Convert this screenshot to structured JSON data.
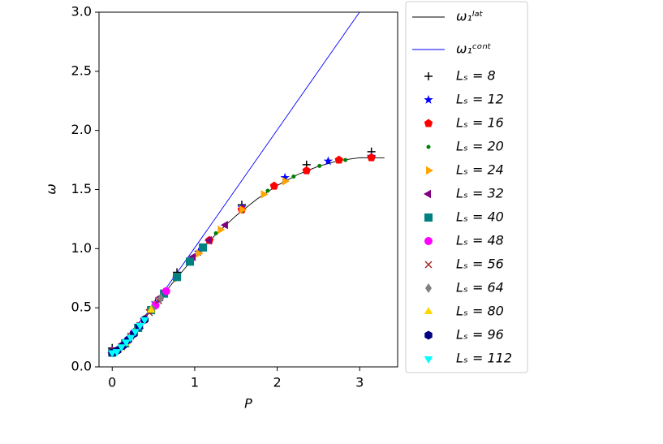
{
  "chart_data": {
    "type": "scatter",
    "x_label": "P",
    "y_label": "ω",
    "xlim": [
      -0.16,
      3.46
    ],
    "ylim": [
      0,
      3
    ],
    "xticks": [
      0,
      1,
      2,
      3
    ],
    "yticks": [
      {
        "value": 0,
        "label": "0.0"
      },
      0.5,
      {
        "value": 1,
        "label": "1.0"
      },
      1.5,
      {
        "value": 2,
        "label": "2.0"
      },
      2.5,
      {
        "value": 3,
        "label": "3.0"
      }
    ],
    "legend": "outside-right",
    "series": [
      {
        "name": "ω₁ˡᵃᵗ",
        "style": "line",
        "color": "#000000",
        "x": [
          0,
          0.25,
          0.5,
          0.75,
          1,
          1.25,
          1.5,
          1.75,
          2,
          2.25,
          2.5,
          2.75,
          3,
          3.3
        ],
        "values": [
          0.12,
          0.276,
          0.504,
          0.726,
          0.931,
          1.116,
          1.278,
          1.417,
          1.534,
          1.627,
          1.697,
          1.745,
          1.769,
          1.767
        ]
      },
      {
        "name": "ω₁ᶜᵒⁿᵗ",
        "style": "line",
        "color": "#0000ff",
        "x": [
          0,
          0.5,
          1,
          1.5,
          2,
          2.5,
          3
        ],
        "values": [
          0.12,
          0.514,
          1.007,
          1.505,
          2.004,
          2.503,
          3.002
        ]
      },
      {
        "name": "Lₛ = 8",
        "style": "plus",
        "color": "#000000",
        "x": [
          0,
          0.785,
          1.571,
          2.356,
          3.142
        ],
        "values": [
          0.16,
          0.8,
          1.37,
          1.71,
          1.82
        ]
      },
      {
        "name": "Lₛ = 12",
        "style": "star",
        "color": "#0000ff",
        "x": [
          0,
          0.524,
          1.047,
          1.571,
          2.094,
          2.618,
          3.142
        ],
        "values": [
          0.14,
          0.54,
          0.97,
          1.35,
          1.6,
          1.74,
          1.78
        ]
      },
      {
        "name": "Lₛ = 16",
        "style": "pentagon",
        "color": "#ff0000",
        "x": [
          0,
          0.393,
          0.785,
          1.178,
          1.571,
          1.963,
          2.356,
          2.749,
          3.142
        ],
        "values": [
          0.13,
          0.4,
          0.76,
          1.07,
          1.33,
          1.53,
          1.66,
          1.75,
          1.77
        ]
      },
      {
        "name": "Lₛ = 20",
        "style": "dot",
        "color": "#008000",
        "x": [
          0,
          0.314,
          0.628,
          0.942,
          1.257,
          1.571,
          1.885,
          2.199,
          2.513,
          2.827
        ],
        "values": [
          0.12,
          0.33,
          0.62,
          0.89,
          1.13,
          1.32,
          1.49,
          1.61,
          1.7,
          1.75
        ]
      },
      {
        "name": "Lₛ = 24",
        "style": "tri-right",
        "color": "#ffa500",
        "x": [
          0,
          0.262,
          0.524,
          0.785,
          1.047,
          1.309,
          1.571,
          1.833,
          2.094
        ],
        "values": [
          0.12,
          0.28,
          0.53,
          0.75,
          0.96,
          1.16,
          1.33,
          1.46,
          1.57
        ]
      },
      {
        "name": "Lₛ = 32",
        "style": "tri-left",
        "color": "#800080",
        "x": [
          0,
          0.196,
          0.393,
          0.589,
          0.785,
          0.982,
          1.178,
          1.374
        ],
        "values": [
          0.12,
          0.23,
          0.41,
          0.59,
          0.76,
          0.93,
          1.07,
          1.2
        ]
      },
      {
        "name": "Lₛ = 40",
        "style": "square",
        "color": "#008080",
        "x": [
          0,
          0.157,
          0.314,
          0.471,
          0.628,
          0.785,
          0.942,
          1.1
        ],
        "values": [
          0.12,
          0.2,
          0.33,
          0.48,
          0.62,
          0.76,
          0.89,
          1.01
        ]
      },
      {
        "name": "Lₛ = 48",
        "style": "circle",
        "color": "#ff00ff",
        "x": [
          0,
          0.131,
          0.262,
          0.393,
          0.524,
          0.654
        ],
        "values": [
          0.12,
          0.18,
          0.29,
          0.4,
          0.52,
          0.64
        ]
      },
      {
        "name": "Lₛ = 56",
        "style": "cross",
        "color": "#a52a2a",
        "x": [
          0,
          0.112,
          0.224,
          0.337,
          0.449,
          0.561
        ],
        "values": [
          0.12,
          0.17,
          0.26,
          0.35,
          0.46,
          0.56
        ]
      },
      {
        "name": "Lₛ = 64",
        "style": "diamond",
        "color": "#808080",
        "x": [
          0,
          0.098,
          0.196,
          0.295,
          0.393,
          0.491,
          0.589
        ],
        "values": [
          0.12,
          0.16,
          0.23,
          0.32,
          0.4,
          0.49,
          0.58
        ]
      },
      {
        "name": "Lₛ = 80",
        "style": "tri-up",
        "color": "#ffd700",
        "x": [
          0,
          0.079,
          0.157,
          0.236,
          0.314,
          0.393,
          0.471
        ],
        "values": [
          0.12,
          0.15,
          0.2,
          0.27,
          0.33,
          0.4,
          0.48
        ]
      },
      {
        "name": "Lₛ = 96",
        "style": "hexagon",
        "color": "#000080",
        "x": [
          0,
          0.065,
          0.131,
          0.196,
          0.262,
          0.327,
          0.393
        ],
        "values": [
          0.12,
          0.14,
          0.18,
          0.23,
          0.28,
          0.34,
          0.4
        ]
      },
      {
        "name": "Lₛ = 112",
        "style": "tri-down",
        "color": "#00ffff",
        "x": [
          0,
          0.056,
          0.112,
          0.168,
          0.224,
          0.28,
          0.337,
          0.393
        ],
        "values": [
          0.12,
          0.13,
          0.17,
          0.21,
          0.25,
          0.3,
          0.35,
          0.4
        ]
      }
    ]
  }
}
